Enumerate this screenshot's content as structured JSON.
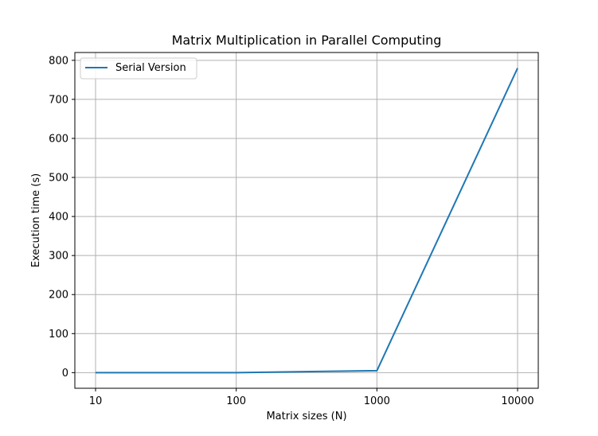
{
  "chart_data": {
    "type": "line",
    "title": "Matrix Multiplication in Parallel Computing",
    "xlabel": "Matrix sizes (N)",
    "ylabel": "Execution time (s)",
    "categories": [
      "10",
      "100",
      "1000",
      "10000"
    ],
    "yticks": [
      0,
      100,
      200,
      300,
      400,
      500,
      600,
      700,
      800
    ],
    "ylim": [
      -40,
      820
    ],
    "grid": true,
    "legend_position": "top-left",
    "series": [
      {
        "name": "Serial Version",
        "color": "#1f77b4",
        "values": [
          0.01,
          0.1,
          5,
          780
        ]
      }
    ]
  }
}
